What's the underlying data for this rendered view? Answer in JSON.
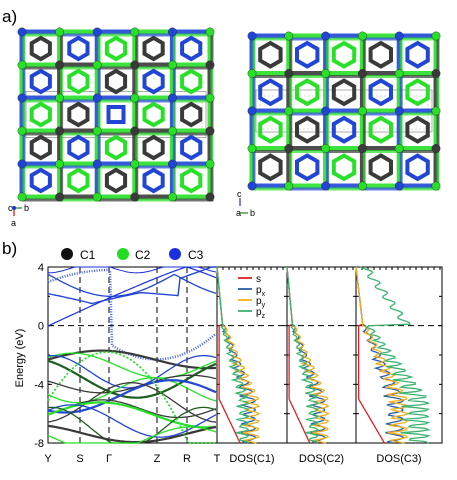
{
  "panel_a_label": "a)",
  "panel_b_label": "b)",
  "axes_left": {
    "c": "c",
    "b": "b",
    "a": "a"
  },
  "axes_right": {
    "c": "c",
    "a": "a",
    "b": "b"
  },
  "atom_legend": [
    {
      "name": "C1",
      "color": "#111111"
    },
    {
      "name": "C2",
      "color": "#22dd22"
    },
    {
      "name": "C3",
      "color": "#1a2fe0"
    }
  ],
  "colors": {
    "C1": "#3a3a3a",
    "C2": "#27e027",
    "C3": "#2146d6",
    "s": "#e02020",
    "px": "#2b5fa6",
    "py": "#f0b020",
    "pz": "#3cb371"
  },
  "chart_data": {
    "type": "line",
    "ylabel": "Energy (eV)",
    "ylim": [
      -8,
      4
    ],
    "yticks": [
      "4",
      "0",
      "-4",
      "-8"
    ],
    "kpoints": [
      "Y",
      "S",
      "Γ",
      "Z",
      "R",
      "T"
    ],
    "dos_panels": [
      "DOS(C1)",
      "DOS(C2)",
      "DOS(C3)"
    ],
    "dos_legend": [
      {
        "key": "s",
        "label": "s",
        "sub": ""
      },
      {
        "key": "px",
        "label": "p",
        "sub": "x"
      },
      {
        "key": "py",
        "label": "p",
        "sub": "y"
      },
      {
        "key": "pz",
        "label": "p",
        "sub": "z"
      }
    ]
  }
}
